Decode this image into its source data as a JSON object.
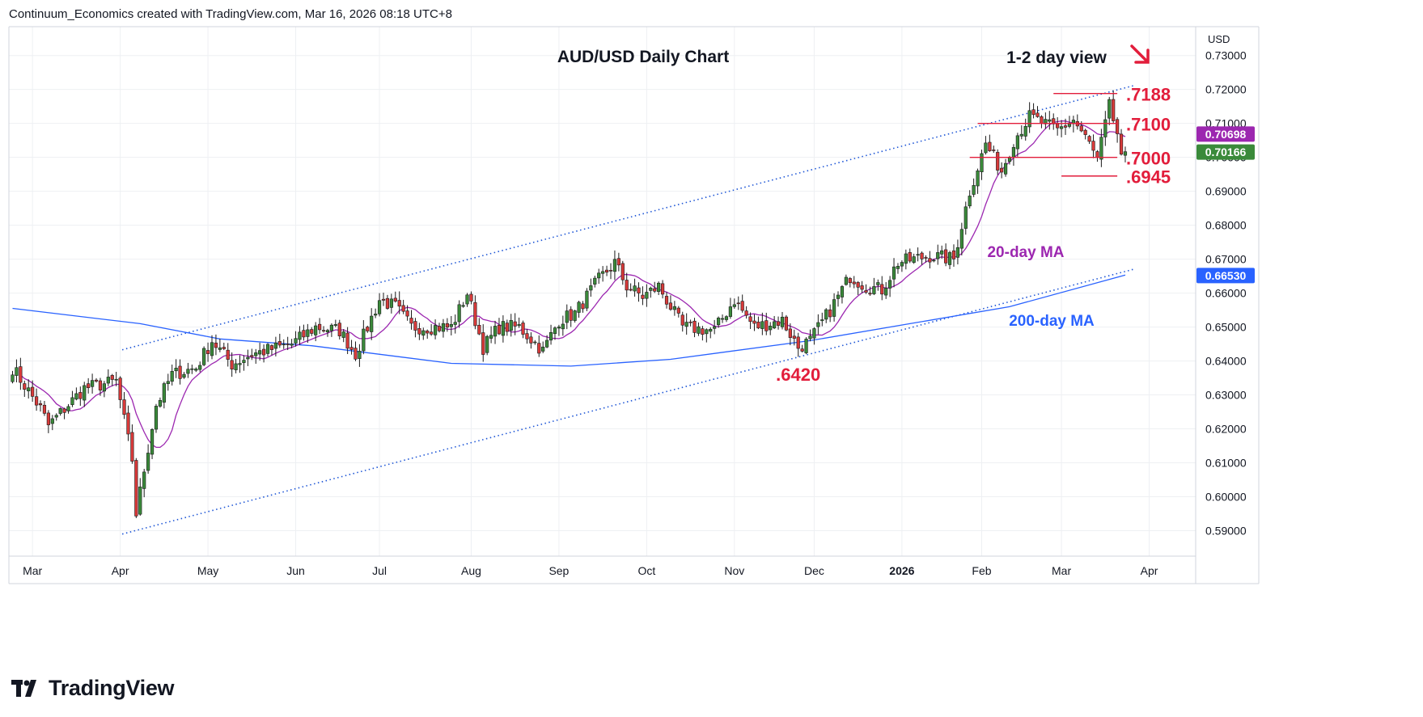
{
  "header": {
    "text": "Continuum_Economics created with TradingView.com, Mar 16, 2026 08:18 UTC+8"
  },
  "brand": {
    "name": "TradingView",
    "logo_icon": "tradingview-logo-icon"
  },
  "colors": {
    "up": "#3a8a3a",
    "down": "#d83a3a",
    "ma20": "#9c27b0",
    "ma200": "#2962ff",
    "channel": "#1e56d6",
    "level": "#e21d3b",
    "grid": "#eef0f3"
  },
  "chart_data": {
    "type": "candlestick",
    "title": "AUD/USD Daily Chart",
    "view_label": "1-2 day view",
    "view_arrow": "down-right-arrow-icon",
    "currency": "USD",
    "ylim": [
      0.5825,
      0.7385
    ],
    "y_ticks": [
      "0.73000",
      "0.72000",
      "0.71000",
      "0.70000",
      "0.69000",
      "0.68000",
      "0.67000",
      "0.66000",
      "0.65000",
      "0.64000",
      "0.63000",
      "0.62000",
      "0.61000",
      "0.60000",
      "0.59000"
    ],
    "y_tick_values": [
      0.73,
      0.72,
      0.71,
      0.7,
      0.69,
      0.68,
      0.67,
      0.66,
      0.65,
      0.64,
      0.63,
      0.62,
      0.61,
      0.6,
      0.59
    ],
    "x_ticks": [
      "Mar",
      "Apr",
      "May",
      "Jun",
      "Jul",
      "Aug",
      "Sep",
      "Oct",
      "Nov",
      "Dec",
      "2026",
      "Feb",
      "Mar",
      "Apr"
    ],
    "x_tick_bold": [
      false,
      false,
      false,
      false,
      false,
      false,
      false,
      false,
      false,
      false,
      true,
      false,
      false,
      false
    ],
    "x_tick_index": [
      5,
      27,
      49,
      71,
      92,
      115,
      137,
      159,
      181,
      201,
      223,
      243,
      263,
      285
    ],
    "anchors": [
      [
        0,
        0.638
      ],
      [
        7,
        0.626
      ],
      [
        9,
        0.621
      ],
      [
        18,
        0.632
      ],
      [
        26,
        0.634
      ],
      [
        30,
        0.611
      ],
      [
        31,
        0.595
      ],
      [
        33,
        0.608
      ],
      [
        36,
        0.627
      ],
      [
        40,
        0.636
      ],
      [
        46,
        0.638
      ],
      [
        50,
        0.646
      ],
      [
        55,
        0.639
      ],
      [
        60,
        0.642
      ],
      [
        70,
        0.645
      ],
      [
        76,
        0.65
      ],
      [
        82,
        0.649
      ],
      [
        86,
        0.642
      ],
      [
        92,
        0.658
      ],
      [
        96,
        0.656
      ],
      [
        100,
        0.65
      ],
      [
        110,
        0.65
      ],
      [
        114,
        0.66
      ],
      [
        118,
        0.644
      ],
      [
        122,
        0.65
      ],
      [
        127,
        0.65
      ],
      [
        133,
        0.643
      ],
      [
        137,
        0.652
      ],
      [
        141,
        0.654
      ],
      [
        147,
        0.664
      ],
      [
        151,
        0.669
      ],
      [
        154,
        0.662
      ],
      [
        158,
        0.659
      ],
      [
        162,
        0.662
      ],
      [
        168,
        0.65
      ],
      [
        176,
        0.649
      ],
      [
        181,
        0.658
      ],
      [
        186,
        0.65
      ],
      [
        193,
        0.652
      ],
      [
        197,
        0.644
      ],
      [
        200,
        0.646
      ],
      [
        205,
        0.655
      ],
      [
        210,
        0.665
      ],
      [
        214,
        0.662
      ],
      [
        218,
        0.661
      ],
      [
        222,
        0.669
      ],
      [
        230,
        0.671
      ],
      [
        236,
        0.67
      ],
      [
        240,
        0.69
      ],
      [
        244,
        0.704
      ],
      [
        248,
        0.696
      ],
      [
        251,
        0.705
      ],
      [
        255,
        0.712
      ],
      [
        262,
        0.708
      ],
      [
        266,
        0.711
      ],
      [
        270,
        0.704
      ],
      [
        272,
        0.699
      ],
      [
        275,
        0.715
      ],
      [
        277,
        0.707
      ],
      [
        278,
        0.699
      ],
      [
        279,
        0.7016
      ]
    ],
    "series": [
      {
        "name": "AUD/USD"
      },
      {
        "name": "20-day MA",
        "last": "0.70698"
      },
      {
        "name": "200-day MA",
        "last": "0.66530"
      }
    ],
    "last_price": "0.70166",
    "levels": [
      {
        "label": ".7188",
        "value": 0.7188
      },
      {
        "label": ".7100",
        "value": 0.71
      },
      {
        "label": ".7000",
        "value": 0.7
      },
      {
        "label": ".6945",
        "value": 0.6945
      },
      {
        "label": ".6420",
        "value": 0.642
      }
    ],
    "annotations": {
      "ma20": "20-day MA",
      "ma200": "200-day MA"
    },
    "grid": true
  }
}
